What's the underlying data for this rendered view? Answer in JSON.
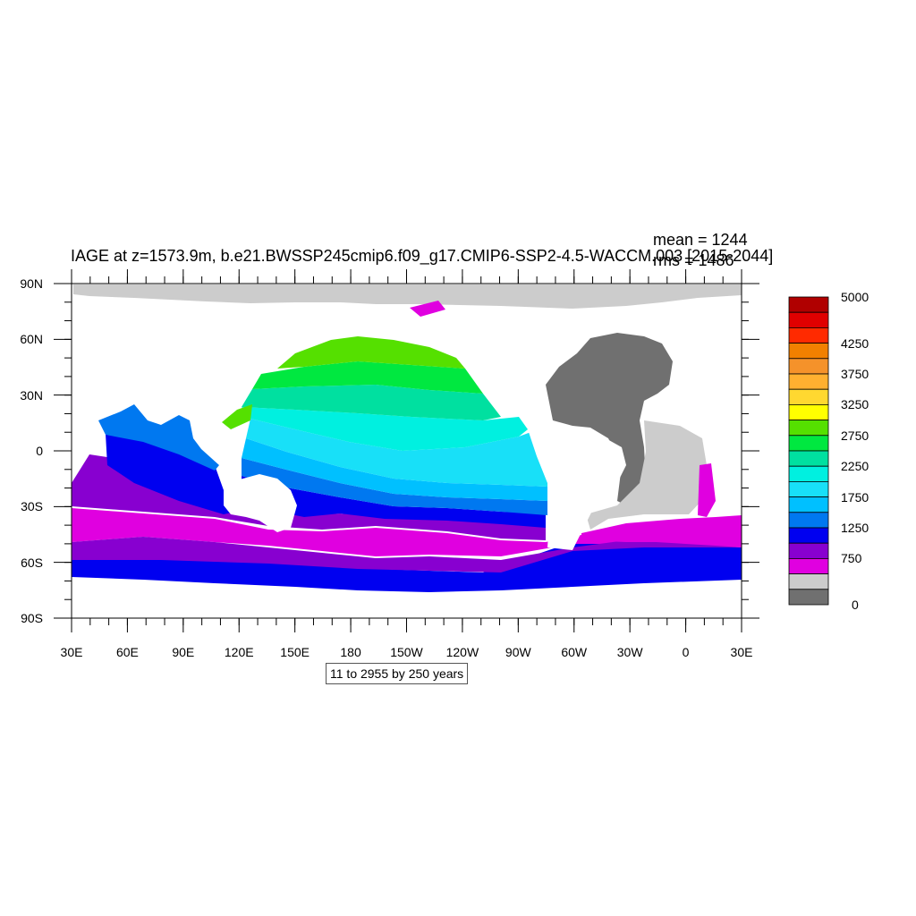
{
  "title": "IAGE at z=1573.9m, b.e21.BWSSP245cmip6.f09_g17.CMIP6-SSP2-4.5-WACCM.003 [2015-2044]",
  "stats": {
    "mean": "mean = 1244",
    "rms": "rms = 1486"
  },
  "info": "11 to 2955 by 250 years",
  "map": {
    "lat_ticks": [
      "90N",
      "60N",
      "30N",
      "0",
      "30S",
      "60S",
      "90S"
    ],
    "lon_ticks": [
      "30E",
      "60E",
      "90E",
      "120E",
      "150E",
      "180",
      "150W",
      "120W",
      "90W",
      "60W",
      "30W",
      "0",
      "30E"
    ],
    "lon_range": [
      30,
      390
    ],
    "lat_range": [
      -90,
      90
    ]
  },
  "colorbar": {
    "labels": [
      "5000",
      "4250",
      "3750",
      "3250",
      "2750",
      "2250",
      "1750",
      "1250",
      "750",
      "0"
    ],
    "colors": [
      "#B00000",
      "#E00000",
      "#FF2A00",
      "#F28000",
      "#F5922A",
      "#FFB030",
      "#FFD830",
      "#FFFF00",
      "#55E000",
      "#00E840",
      "#00E0A0",
      "#00F0E0",
      "#18E0F8",
      "#00C0FF",
      "#0078F0",
      "#0000F0",
      "#8800D0",
      "#E000E0",
      "#CCCCCC",
      "#707070"
    ]
  }
}
